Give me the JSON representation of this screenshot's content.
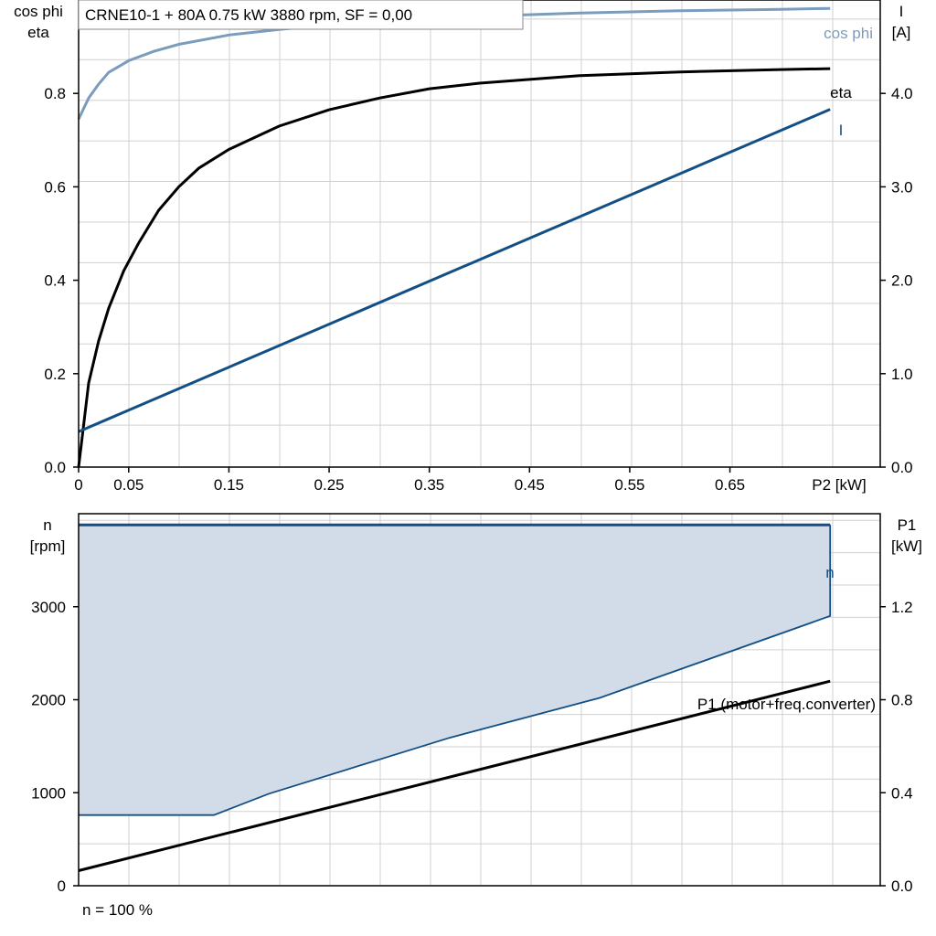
{
  "chart_data": [
    {
      "type": "line",
      "title": "CRNE10-1 + 80A   0.75 kW   3880 rpm, SF = 0,00",
      "xlabel": "P2 [kW]",
      "ylabel_left": [
        "cos phi",
        "eta"
      ],
      "ylabel_right": [
        "I",
        "[A]"
      ],
      "xlim": [
        0,
        0.8
      ],
      "ylim_left": [
        0,
        1.0
      ],
      "ylim_right": [
        0,
        5.0
      ],
      "x_ticks": [
        "0",
        "0.05",
        "0.15",
        "0.25",
        "0.35",
        "0.45",
        "0.55",
        "0.65"
      ],
      "y_ticks_left": [
        "0.0",
        "0.2",
        "0.4",
        "0.6",
        "0.8"
      ],
      "y_ticks_right": [
        "0.0",
        "1.0",
        "2.0",
        "3.0",
        "4.0"
      ],
      "grid": true,
      "colors": {
        "cosphi": "#7a9cbd",
        "eta": "#000000",
        "I": "#134f85"
      },
      "series": [
        {
          "name": "cos phi",
          "axis": "left",
          "x": [
            0,
            0.01,
            0.02,
            0.03,
            0.05,
            0.075,
            0.1,
            0.15,
            0.2,
            0.25,
            0.3,
            0.4,
            0.5,
            0.6,
            0.7,
            0.75
          ],
          "y": [
            0.745,
            0.79,
            0.82,
            0.845,
            0.87,
            0.89,
            0.905,
            0.925,
            0.937,
            0.947,
            0.955,
            0.965,
            0.972,
            0.977,
            0.98,
            0.982
          ]
        },
        {
          "name": "eta",
          "axis": "left",
          "x": [
            0,
            0.01,
            0.02,
            0.03,
            0.045,
            0.06,
            0.08,
            0.1,
            0.12,
            0.15,
            0.2,
            0.25,
            0.3,
            0.35,
            0.4,
            0.5,
            0.6,
            0.7,
            0.75
          ],
          "y": [
            0,
            0.18,
            0.27,
            0.34,
            0.42,
            0.48,
            0.55,
            0.6,
            0.64,
            0.68,
            0.73,
            0.765,
            0.79,
            0.81,
            0.822,
            0.838,
            0.846,
            0.851,
            0.853
          ]
        },
        {
          "name": "I",
          "axis": "right",
          "x": [
            0,
            0.75
          ],
          "y": [
            0.38,
            3.83
          ]
        }
      ]
    },
    {
      "type": "area",
      "xlim": [
        0,
        0.8
      ],
      "ylabel_left": [
        "n",
        "[rpm]"
      ],
      "ylabel_right": [
        "P1",
        "[kW]"
      ],
      "ylim_left": [
        0,
        4000
      ],
      "ylim_right": [
        0,
        1.6
      ],
      "y_ticks_left": [
        "0",
        "1000",
        "2000",
        "3000"
      ],
      "y_ticks_right": [
        "0.0",
        "0.4",
        "0.8",
        "1.2"
      ],
      "grid": true,
      "footnote": "n = 100 %",
      "colors": {
        "n": "#134f85",
        "n_fill": "#d1dce8",
        "P1": "#000000"
      },
      "series": [
        {
          "name": "n",
          "axis": "left",
          "x": [
            0,
            0.75
          ],
          "y": [
            3880,
            3880
          ]
        },
        {
          "name": "n_lower_bound",
          "axis": "left",
          "x": [
            0,
            0.135,
            0.19,
            0.37,
            0.52,
            0.75,
            0.75
          ],
          "y": [
            760,
            760,
            990,
            1590,
            2020,
            2900,
            3880
          ]
        },
        {
          "name": "P1 (motor+freq.converter)",
          "axis": "right",
          "x": [
            0,
            0.75
          ],
          "y": [
            0.065,
            0.88
          ]
        }
      ]
    }
  ]
}
